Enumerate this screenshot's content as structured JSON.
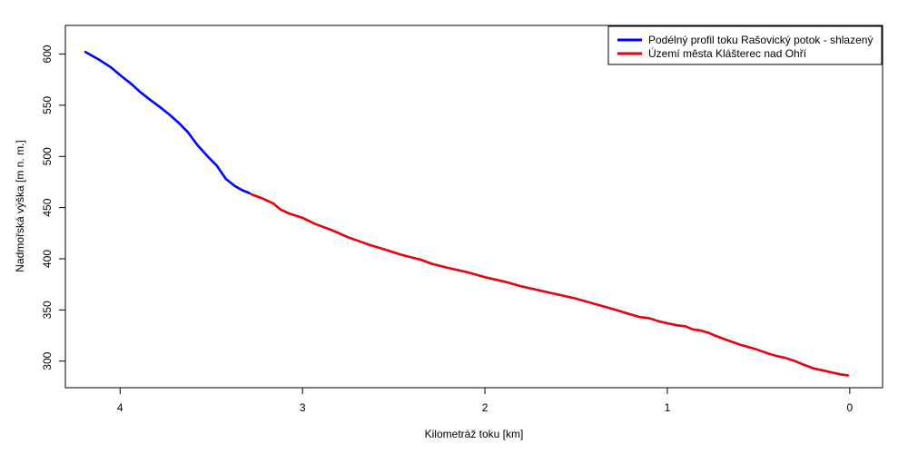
{
  "chart_data": {
    "type": "line",
    "xlabel": "Kilometráž toku [km]",
    "ylabel": "Nadmořská výška [m n. m.]",
    "xlim": [
      4.3,
      -0.18
    ],
    "ylim": [
      274,
      628
    ],
    "x_reversed": true,
    "x_ticks": [
      4,
      3,
      2,
      1,
      0
    ],
    "y_ticks": [
      300,
      350,
      400,
      450,
      500,
      550,
      600
    ],
    "grid": false,
    "legend_position": "top-right",
    "series": [
      {
        "name": "Podélný profil toku Rašovický potok - shlazený",
        "color": "#0000ff",
        "x": [
          4.19,
          4.12,
          4.05,
          3.99,
          3.94,
          3.89,
          3.84,
          3.78,
          3.73,
          3.68,
          3.63,
          3.58,
          3.52,
          3.47,
          3.42,
          3.37,
          3.33,
          3.29
        ],
        "y": [
          602,
          595,
          587,
          578,
          571,
          563,
          556,
          548,
          541,
          533,
          524,
          512,
          500,
          491,
          478,
          471,
          467,
          464
        ]
      },
      {
        "name": "Území města Klášterec nad Ohří",
        "color": "#e8000b",
        "x": [
          3.28,
          3.22,
          3.16,
          3.12,
          3.07,
          3.0,
          2.93,
          2.84,
          2.75,
          2.64,
          2.55,
          2.46,
          2.35,
          2.29,
          2.2,
          2.1,
          2.0,
          1.9,
          1.8,
          1.7,
          1.6,
          1.5,
          1.4,
          1.3,
          1.21,
          1.15,
          1.1,
          1.05,
          1.0,
          0.95,
          0.9,
          0.86,
          0.82,
          0.78,
          0.74,
          0.68,
          0.6,
          0.52,
          0.44,
          0.4,
          0.35,
          0.3,
          0.26,
          0.2,
          0.15,
          0.1,
          0.05,
          0.01
        ],
        "y": [
          463,
          459,
          454,
          448,
          444,
          440,
          434,
          428,
          421,
          414,
          409,
          404,
          399,
          395,
          391,
          387,
          382,
          378,
          373,
          369,
          365,
          361,
          356,
          351,
          346,
          343,
          342,
          339,
          337,
          335,
          334,
          331,
          330,
          328,
          325,
          321,
          316,
          312,
          307,
          305,
          303,
          300,
          297,
          293,
          291,
          289,
          287,
          286
        ]
      }
    ]
  }
}
